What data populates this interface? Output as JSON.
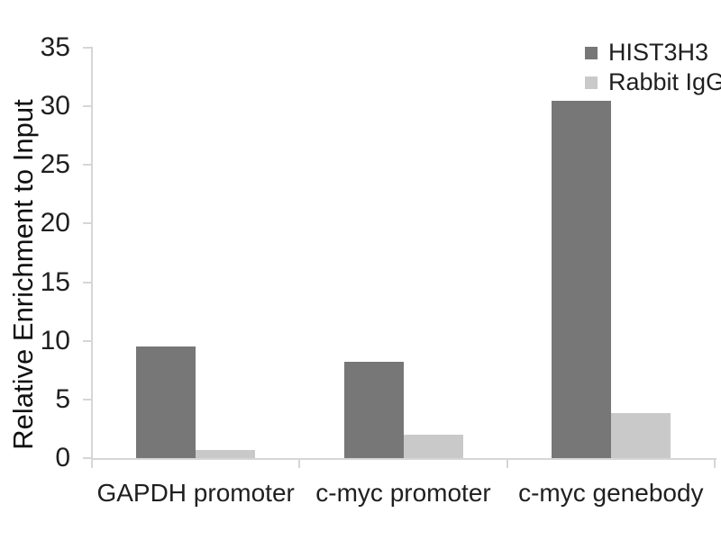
{
  "page": {
    "background": "#ffffff"
  },
  "chart_data": {
    "type": "bar",
    "title": "",
    "xlabel": "",
    "ylabel": "Relative Enrichment to Input",
    "ylim": [
      0,
      35
    ],
    "yticks": [
      0,
      5,
      10,
      15,
      20,
      25,
      30,
      35
    ],
    "grid": false,
    "legend_position": "top-right",
    "categories": [
      "GAPDH promoter",
      "c-myc promoter",
      "c-myc genebody"
    ],
    "series": [
      {
        "name": "HIST3H3",
        "color": "#777777",
        "values": [
          9.5,
          8.2,
          30.5
        ]
      },
      {
        "name": "Rabbit IgG",
        "color": "#c9c9c9",
        "values": [
          0.7,
          2.0,
          3.8
        ]
      }
    ]
  },
  "style": {
    "axis_color": "#d6d6d6",
    "text_color": "#1f1f1f"
  }
}
